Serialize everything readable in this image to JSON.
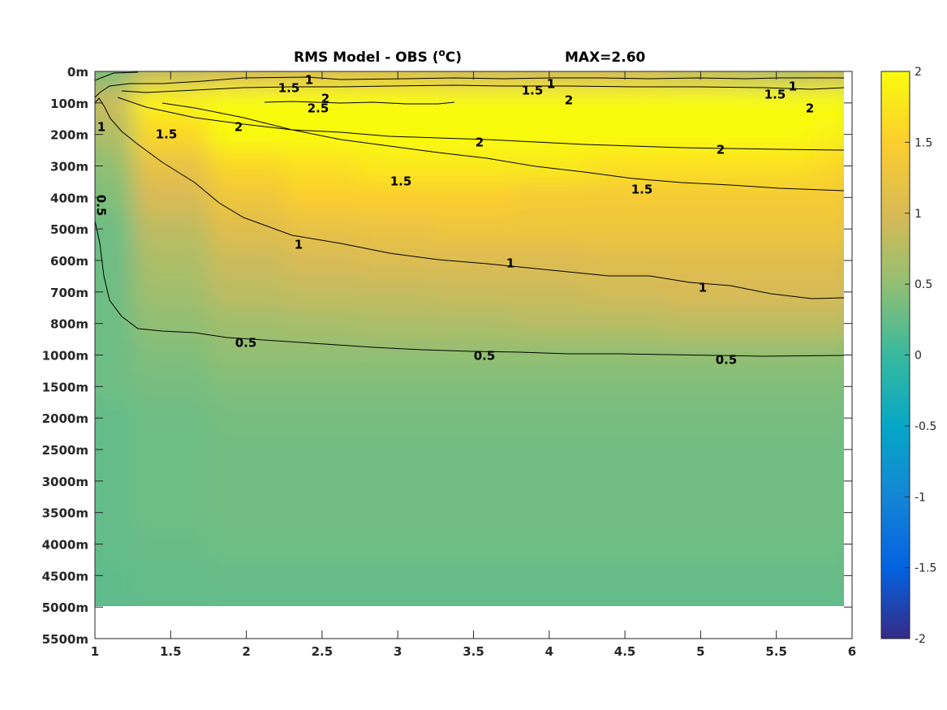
{
  "chart_data": {
    "type": "heatmap",
    "title": "RMS Model - OBS (",
    "title_unit": "o",
    "title_suffix": "C)",
    "max_text": "MAX=2.60",
    "xlim": [
      1,
      6
    ],
    "x_ticks": [
      "1",
      "1.5",
      "2",
      "2.5",
      "3",
      "3.5",
      "4",
      "4.5",
      "5",
      "5.5",
      "6"
    ],
    "y_ticks": [
      "0m",
      "100m",
      "200m",
      "300m",
      "400m",
      "500m",
      "600m",
      "700m",
      "800m",
      "1000m",
      "1500m",
      "2000m",
      "2500m",
      "3000m",
      "3500m",
      "4000m",
      "4500m",
      "5000m",
      "5500m"
    ],
    "colorbar": {
      "range": [
        -2,
        2
      ],
      "ticks": [
        "2",
        "1.5",
        "1",
        "0.5",
        "0",
        "-0.5",
        "-1",
        "-1.5",
        "-2"
      ],
      "colormap": [
        "#352a87",
        "#0363e1",
        "#1485d4",
        "#06a7c6",
        "#38b99e",
        "#92bf73",
        "#d9ba56",
        "#fcce2e",
        "#f9fb0e"
      ]
    },
    "contour_levels": [
      "0.5",
      "1",
      "1.5",
      "2",
      "2.5"
    ],
    "x": [
      1,
      1.5,
      2,
      2.5,
      3,
      3.5,
      4,
      4.5,
      5,
      5.5,
      6
    ],
    "depth_levels": [
      "0m",
      "100m",
      "200m",
      "300m",
      "400m",
      "500m",
      "600m",
      "700m",
      "800m",
      "1000m",
      "1500m",
      "2000m",
      "2500m",
      "3000m",
      "3500m",
      "4000m",
      "4500m",
      "5000m"
    ],
    "values": [
      [
        0.4,
        0.9,
        1.0,
        1.1,
        1.1,
        1.0,
        1.0,
        1.0,
        0.9,
        0.8,
        0.9
      ],
      [
        0.9,
        1.9,
        2.3,
        2.6,
        2.5,
        2.4,
        2.3,
        2.3,
        2.2,
        2.1,
        2.0
      ],
      [
        0.7,
        1.6,
        2.0,
        2.2,
        2.3,
        2.2,
        2.2,
        2.1,
        2.0,
        2.0,
        1.9
      ],
      [
        0.5,
        1.2,
        1.6,
        1.7,
        1.8,
        1.8,
        1.8,
        1.7,
        1.7,
        1.7,
        1.6
      ],
      [
        0.4,
        1.0,
        1.3,
        1.5,
        1.5,
        1.5,
        1.4,
        1.4,
        1.4,
        1.4,
        1.4
      ],
      [
        0.3,
        0.8,
        1.1,
        1.2,
        1.25,
        1.3,
        1.3,
        1.3,
        1.3,
        1.3,
        1.3
      ],
      [
        0.3,
        0.7,
        0.9,
        1.0,
        1.05,
        1.05,
        1.05,
        1.1,
        1.1,
        1.1,
        1.1
      ],
      [
        0.3,
        0.6,
        0.8,
        0.85,
        0.85,
        0.9,
        0.9,
        0.95,
        1.0,
        1.0,
        1.0
      ],
      [
        0.3,
        0.5,
        0.6,
        0.65,
        0.7,
        0.7,
        0.75,
        0.75,
        0.8,
        0.8,
        0.8
      ],
      [
        0.3,
        0.4,
        0.5,
        0.5,
        0.5,
        0.5,
        0.5,
        0.5,
        0.5,
        0.5,
        0.5
      ],
      [
        0.3,
        0.35,
        0.4,
        0.4,
        0.4,
        0.4,
        0.4,
        0.4,
        0.4,
        0.4,
        0.4
      ],
      [
        0.25,
        0.3,
        0.35,
        0.35,
        0.35,
        0.35,
        0.35,
        0.35,
        0.35,
        0.35,
        0.35
      ],
      [
        0.25,
        0.3,
        0.32,
        0.32,
        0.32,
        0.32,
        0.32,
        0.32,
        0.32,
        0.32,
        0.32
      ],
      [
        0.25,
        0.3,
        0.32,
        0.32,
        0.32,
        0.32,
        0.32,
        0.32,
        0.32,
        0.32,
        0.32
      ],
      [
        0.25,
        0.3,
        0.32,
        0.32,
        0.32,
        0.32,
        0.32,
        0.32,
        0.32,
        0.32,
        0.32
      ],
      [
        0.25,
        0.28,
        0.3,
        0.3,
        0.3,
        0.3,
        0.3,
        0.3,
        0.3,
        0.3,
        0.3
      ],
      [
        0.22,
        0.25,
        0.27,
        0.27,
        0.27,
        0.27,
        0.27,
        0.27,
        0.27,
        0.27,
        0.27
      ],
      [
        0.22,
        0.24,
        0.25,
        0.25,
        0.25,
        0.25,
        0.25,
        0.25,
        0.25,
        0.25,
        0.25
      ]
    ],
    "grid": false,
    "legend": "colorbar-right"
  }
}
